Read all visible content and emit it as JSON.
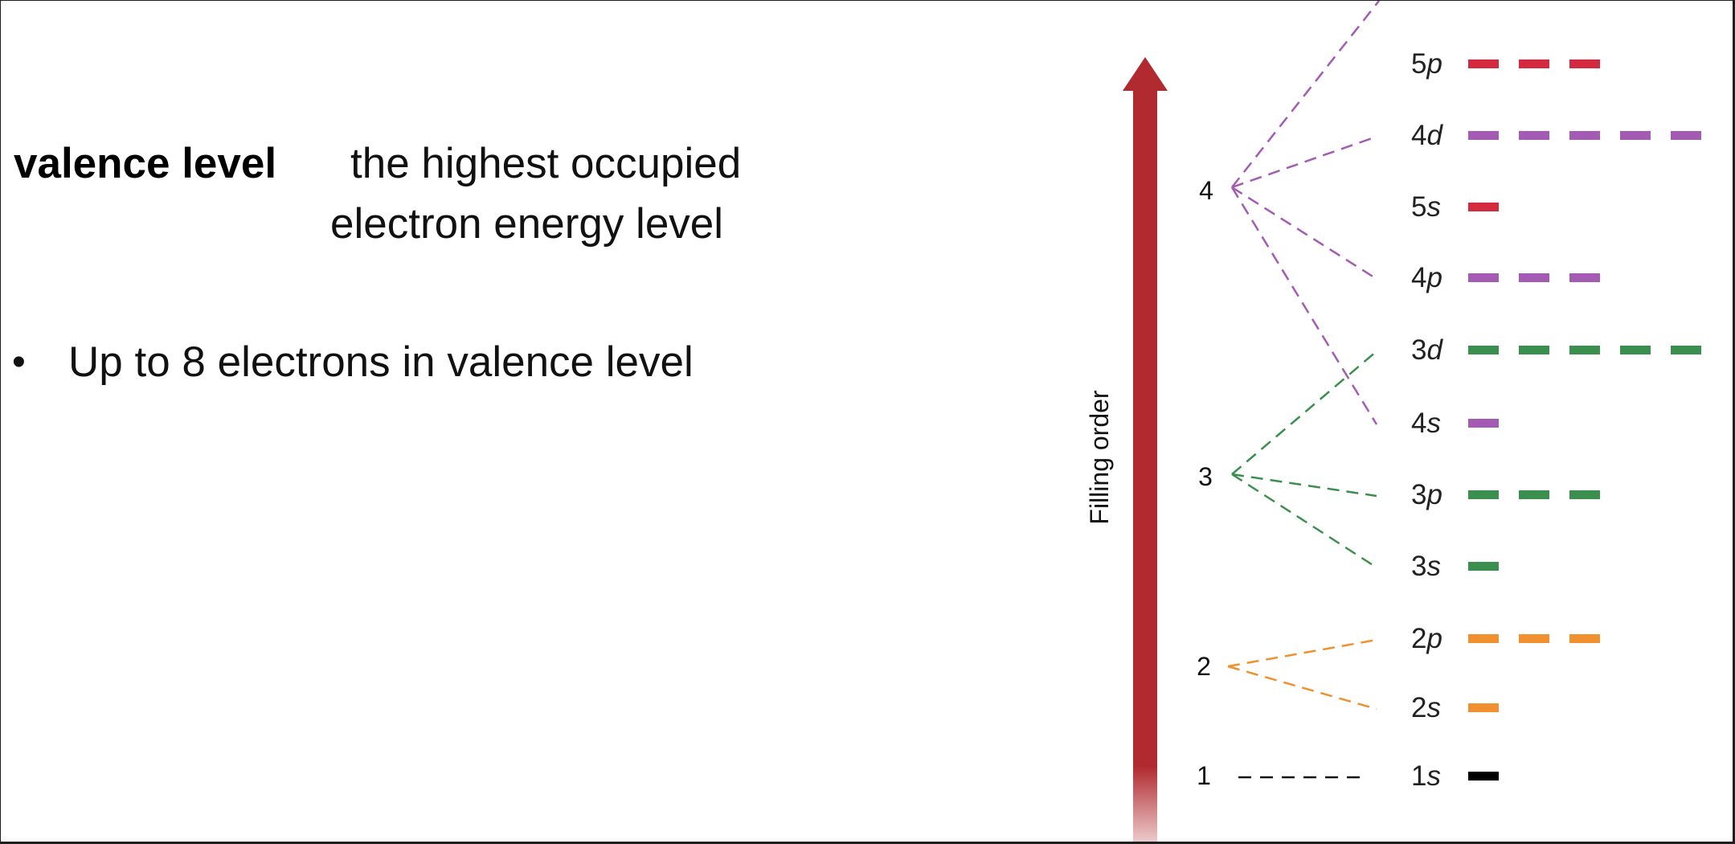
{
  "definition": {
    "term": "valence level",
    "line1": "the highest occupied",
    "line2": "electron energy level"
  },
  "bullets": [
    {
      "marker": "•",
      "text": "Up to 8 electrons in valence level"
    }
  ],
  "diagram": {
    "arrow_label": "Filling order",
    "arrow_color": "#b02a2f",
    "levels": [
      {
        "label": "1",
        "color": "#111111"
      },
      {
        "label": "2",
        "color": "#f0902e"
      },
      {
        "label": "3",
        "color": "#3a8f4e"
      },
      {
        "label": "4",
        "color": "#a45bb4"
      }
    ],
    "subshells": [
      {
        "n": "1",
        "l": "s",
        "orbitals": 1,
        "color": "#000000"
      },
      {
        "n": "2",
        "l": "s",
        "orbitals": 1,
        "color": "#f0902e"
      },
      {
        "n": "2",
        "l": "p",
        "orbitals": 3,
        "color": "#f0902e"
      },
      {
        "n": "3",
        "l": "s",
        "orbitals": 1,
        "color": "#3a8f4e"
      },
      {
        "n": "3",
        "l": "p",
        "orbitals": 3,
        "color": "#3a8f4e"
      },
      {
        "n": "4",
        "l": "s",
        "orbitals": 1,
        "color": "#a45bb4"
      },
      {
        "n": "3",
        "l": "d",
        "orbitals": 5,
        "color": "#3a8f4e"
      },
      {
        "n": "4",
        "l": "p",
        "orbitals": 3,
        "color": "#a45bb4"
      },
      {
        "n": "5",
        "l": "s",
        "orbitals": 1,
        "color": "#d42a40"
      },
      {
        "n": "4",
        "l": "d",
        "orbitals": 5,
        "color": "#a45bb4"
      },
      {
        "n": "5",
        "l": "p",
        "orbitals": 3,
        "color": "#d42a40"
      }
    ]
  }
}
